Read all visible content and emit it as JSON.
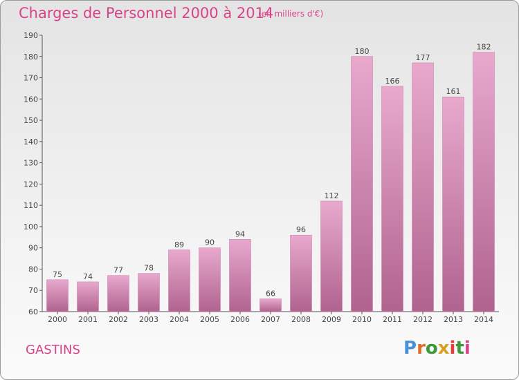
{
  "chart_data": {
    "type": "bar",
    "title": "Charges de Personnel 2000 à 2014",
    "subtitle": "(en milliers d'€)",
    "categories": [
      "2000",
      "2001",
      "2002",
      "2003",
      "2004",
      "2005",
      "2006",
      "2007",
      "2008",
      "2009",
      "2010",
      "2011",
      "2012",
      "2013",
      "2014"
    ],
    "values": [
      75,
      74,
      77,
      78,
      89,
      90,
      94,
      66,
      96,
      112,
      180,
      166,
      177,
      161,
      182
    ],
    "ylim": [
      60,
      190
    ],
    "yticks": [
      60,
      70,
      80,
      90,
      100,
      110,
      120,
      130,
      140,
      150,
      160,
      170,
      180,
      190
    ],
    "grid": false,
    "legend": "none",
    "bar_color": "#d48cb6",
    "bar_color_dark": "#b0638f"
  },
  "footer": {
    "commune": "GASTINS",
    "logo_text": "Proxiti",
    "logo_colors": [
      "#4a90d9",
      "#e06a2a",
      "#3a9a3a",
      "#d9a020",
      "#e04040",
      "#3a9a3a",
      "#d9438a"
    ]
  }
}
